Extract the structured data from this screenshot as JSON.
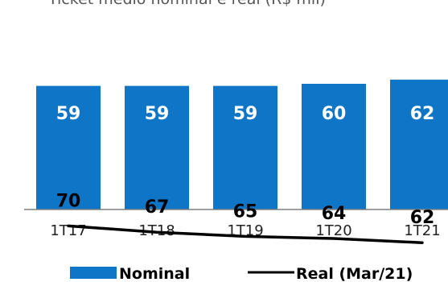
{
  "chart_data": {
    "type": "bar",
    "title_fragment": "Ticket médio nominal e real (R$ mil)",
    "categories": [
      "1T17",
      "1T18",
      "1T19",
      "1T20",
      "1T21"
    ],
    "series": [
      {
        "name": "Nominal",
        "type": "bar",
        "values": [
          59,
          59,
          59,
          60,
          62
        ],
        "color": "#0e75c7"
      },
      {
        "name": "Real (Mar/21)",
        "type": "line",
        "values": [
          70,
          67,
          65,
          64,
          62
        ],
        "color": "#000000"
      }
    ],
    "ylim": [
      0,
      75
    ],
    "grid": false,
    "legend_placement": "bottom"
  }
}
